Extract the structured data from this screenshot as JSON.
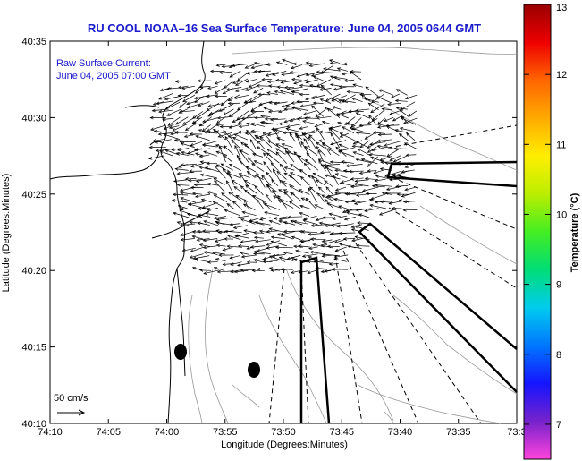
{
  "title": "RU COOL  NOAA–16  Sea Surface Temperature:  June 04, 2005 0644 GMT",
  "legend": {
    "line1": "Raw Surface Current:",
    "line2": "June 04, 2005 07:00 GMT"
  },
  "scale": {
    "label": "50 cm/s"
  },
  "x_axis": {
    "label": "Longitude (Degrees:Minutes)",
    "ticks": [
      "74:10",
      "74:05",
      "74:00",
      "73:55",
      "73:50",
      "73:45",
      "73:40",
      "73:35",
      "73:3"
    ]
  },
  "y_axis": {
    "label": "Latitude (Degrees:Minutes)",
    "ticks": [
      "40:35",
      "40:30",
      "40:25",
      "40:20",
      "40:15",
      "40:10"
    ]
  },
  "colorbar": {
    "label": "Temperature (°C)",
    "ticks": [
      "13",
      "12",
      "11",
      "10",
      "9",
      "8",
      "7"
    ],
    "range": [
      6.5,
      13
    ],
    "colors": [
      "#ff44dd",
      "#7722cc",
      "#1515ff",
      "#0077ff",
      "#00ccee",
      "#00dd77",
      "#44ee22",
      "#bbee00",
      "#ffee00",
      "#ffaa00",
      "#ff6600",
      "#ee0000",
      "#990000"
    ]
  },
  "map_data": {
    "lon_range_minutes": [
      -4450,
      -4410
    ],
    "lat_range_minutes": [
      2410,
      2435
    ],
    "buoys": [
      {
        "lon": "73:58.8",
        "lat": "40:14.6"
      },
      {
        "lon": "73:52.4",
        "lat": "40:13.5"
      }
    ]
  }
}
